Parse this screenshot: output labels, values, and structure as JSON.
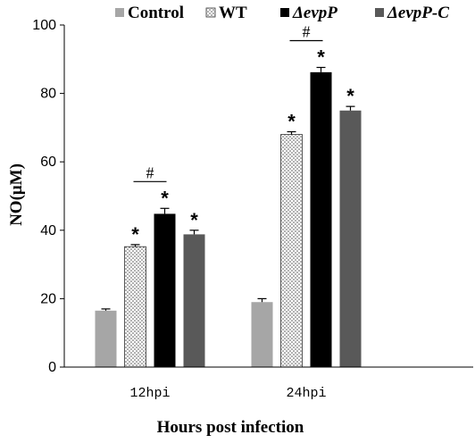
{
  "chart_data": {
    "type": "bar",
    "xlabel": "Hours post infection",
    "ylabel": "NO(μM)",
    "ylim": [
      0,
      100
    ],
    "yticks": [
      0,
      20,
      40,
      60,
      80,
      100
    ],
    "categories": [
      "12hpi",
      "24hpi"
    ],
    "grid": false,
    "legend_position": "top",
    "series": [
      {
        "name": "Control",
        "values": [
          16.5,
          19.0
        ],
        "errors": [
          0.5,
          1.0
        ],
        "color": "#a6a6a6",
        "pattern": "solid"
      },
      {
        "name": "WT",
        "values": [
          35.2,
          68.0
        ],
        "errors": [
          0.6,
          0.8
        ],
        "color": "#ffffff",
        "pattern": "dotted"
      },
      {
        "name": "ΔevpP",
        "values": [
          44.8,
          86.2
        ],
        "errors": [
          1.6,
          1.4
        ],
        "color": "#000000",
        "pattern": "solid"
      },
      {
        "name": "ΔevpP-C",
        "values": [
          38.8,
          75.0
        ],
        "errors": [
          1.2,
          1.2
        ],
        "color": "#595959",
        "pattern": "solid"
      }
    ],
    "significance_marks": [
      [
        "",
        "*",
        "*",
        "*"
      ],
      [
        "",
        "*",
        "*",
        "*"
      ]
    ],
    "comparison_mark": "#"
  }
}
